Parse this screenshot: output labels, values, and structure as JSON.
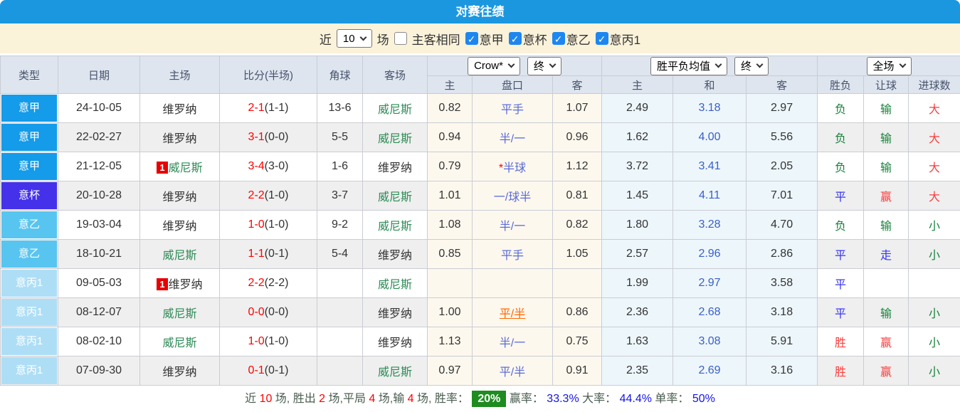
{
  "title": "对赛往绩",
  "filter": {
    "near_label": "近",
    "count_value": "10",
    "games_label": "场",
    "same_venue_label": "主客相同",
    "leagues": [
      {
        "label": "意甲",
        "checked": true
      },
      {
        "label": "意杯",
        "checked": true
      },
      {
        "label": "意乙",
        "checked": true
      },
      {
        "label": "意丙1",
        "checked": true
      }
    ]
  },
  "header": {
    "type": "类型",
    "date": "日期",
    "home": "主场",
    "score": "比分(半场)",
    "corner": "角球",
    "away": "客场",
    "odds_source": "Crow*",
    "odds_time": "终",
    "avg_source": "胜平负均值",
    "avg_time": "终",
    "scope": "全场",
    "sub": {
      "home": "主",
      "handicap": "盘口",
      "away": "客",
      "avg_home": "主",
      "avg_draw": "和",
      "avg_away": "客",
      "result": "胜负",
      "give": "让球",
      "goals": "进球数"
    }
  },
  "colors": {
    "accent_blue": "#1B97E0",
    "lega": "#149BE9",
    "coppa": "#4431E9",
    "serieb": "#58C5F1",
    "seriec": "#AEDEF6",
    "win_red": "#FA3E3E",
    "lose_green": "#17823B",
    "draw_blue": "#3535F3",
    "rate_badge_green": "#1E8C1E"
  },
  "rows": [
    {
      "league": "意甲",
      "league_class": "lega",
      "date": "24-10-05",
      "home_badge": "",
      "home": "维罗纳",
      "home_class": "",
      "score": "2-1",
      "half": "(1-1)",
      "corner": "13-6",
      "away_badge": "",
      "away": "威尼斯",
      "away_class": "tg",
      "odds_home": "0.82",
      "star": "",
      "handicap": "平手",
      "handicap_class": "",
      "odds_away": "1.07",
      "avg_home": "2.49",
      "avg_draw": "3.18",
      "avg_away": "2.97",
      "result": "负",
      "result_class": "g",
      "give": "输",
      "give_class": "g",
      "goals": "大",
      "goals_class": "r"
    },
    {
      "league": "意甲",
      "league_class": "lega",
      "date": "22-02-27",
      "home_badge": "",
      "home": "维罗纳",
      "home_class": "",
      "score": "3-1",
      "half": "(0-0)",
      "corner": "5-5",
      "away_badge": "",
      "away": "威尼斯",
      "away_class": "tg",
      "odds_home": "0.94",
      "star": "",
      "handicap": "半/一",
      "handicap_class": "",
      "odds_away": "0.96",
      "avg_home": "1.62",
      "avg_draw": "4.00",
      "avg_away": "5.56",
      "result": "负",
      "result_class": "g",
      "give": "输",
      "give_class": "g",
      "goals": "大",
      "goals_class": "r"
    },
    {
      "league": "意甲",
      "league_class": "lega",
      "date": "21-12-05",
      "home_badge": "1",
      "home": "威尼斯",
      "home_class": "tg",
      "score": "3-4",
      "half": "(3-0)",
      "corner": "1-6",
      "away_badge": "",
      "away": "维罗纳",
      "away_class": "",
      "odds_home": "0.79",
      "star": "*",
      "handicap": "半球",
      "handicap_class": "",
      "odds_away": "1.12",
      "avg_home": "3.72",
      "avg_draw": "3.41",
      "avg_away": "2.05",
      "result": "负",
      "result_class": "g",
      "give": "输",
      "give_class": "g",
      "goals": "大",
      "goals_class": "r"
    },
    {
      "league": "意杯",
      "league_class": "coppa",
      "date": "20-10-28",
      "home_badge": "",
      "home": "维罗纳",
      "home_class": "",
      "score": "2-2",
      "half": "(1-0)",
      "corner": "3-7",
      "away_badge": "",
      "away": "威尼斯",
      "away_class": "tg",
      "odds_home": "1.01",
      "star": "",
      "handicap": "一/球半",
      "handicap_class": "",
      "odds_away": "0.81",
      "avg_home": "1.45",
      "avg_draw": "4.11",
      "avg_away": "7.01",
      "result": "平",
      "result_class": "b",
      "give": "赢",
      "give_class": "r",
      "goals": "大",
      "goals_class": "r"
    },
    {
      "league": "意乙",
      "league_class": "serieb",
      "date": "19-03-04",
      "home_badge": "",
      "home": "维罗纳",
      "home_class": "",
      "score": "1-0",
      "half": "(1-0)",
      "corner": "9-2",
      "away_badge": "",
      "away": "威尼斯",
      "away_class": "tg",
      "odds_home": "1.08",
      "star": "",
      "handicap": "半/一",
      "handicap_class": "",
      "odds_away": "0.82",
      "avg_home": "1.80",
      "avg_draw": "3.28",
      "avg_away": "4.70",
      "result": "负",
      "result_class": "g",
      "give": "输",
      "give_class": "g",
      "goals": "小",
      "goals_class": "g"
    },
    {
      "league": "意乙",
      "league_class": "serieb",
      "date": "18-10-21",
      "home_badge": "",
      "home": "威尼斯",
      "home_class": "tg",
      "score": "1-1",
      "half": "(0-1)",
      "corner": "5-4",
      "away_badge": "",
      "away": "维罗纳",
      "away_class": "",
      "odds_home": "0.85",
      "star": "",
      "handicap": "平手",
      "handicap_class": "",
      "odds_away": "1.05",
      "avg_home": "2.57",
      "avg_draw": "2.96",
      "avg_away": "2.86",
      "result": "平",
      "result_class": "b",
      "give": "走",
      "give_class": "b",
      "goals": "小",
      "goals_class": "g"
    },
    {
      "league": "意丙1",
      "league_class": "seriec",
      "date": "09-05-03",
      "home_badge": "1",
      "home": "维罗纳",
      "home_class": "",
      "score": "2-2",
      "half": "(2-2)",
      "corner": "",
      "away_badge": "",
      "away": "威尼斯",
      "away_class": "tg",
      "odds_home": "",
      "star": "",
      "handicap": "",
      "handicap_class": "",
      "odds_away": "",
      "avg_home": "1.99",
      "avg_draw": "2.97",
      "avg_away": "3.58",
      "result": "平",
      "result_class": "b",
      "give": "",
      "give_class": "",
      "goals": "",
      "goals_class": ""
    },
    {
      "league": "意丙1",
      "league_class": "seriec",
      "date": "08-12-07",
      "home_badge": "",
      "home": "威尼斯",
      "home_class": "tg",
      "score": "0-0",
      "half": "(0-0)",
      "corner": "",
      "away_badge": "",
      "away": "维罗纳",
      "away_class": "",
      "odds_home": "1.00",
      "star": "",
      "handicap": "平/半",
      "handicap_class": "o",
      "odds_away": "0.86",
      "avg_home": "2.36",
      "avg_draw": "2.68",
      "avg_away": "3.18",
      "result": "平",
      "result_class": "b",
      "give": "输",
      "give_class": "g",
      "goals": "小",
      "goals_class": "g"
    },
    {
      "league": "意丙1",
      "league_class": "seriec",
      "date": "08-02-10",
      "home_badge": "",
      "home": "威尼斯",
      "home_class": "tg",
      "score": "1-0",
      "half": "(1-0)",
      "corner": "",
      "away_badge": "",
      "away": "维罗纳",
      "away_class": "",
      "odds_home": "1.13",
      "star": "",
      "handicap": "半/一",
      "handicap_class": "",
      "odds_away": "0.75",
      "avg_home": "1.63",
      "avg_draw": "3.08",
      "avg_away": "5.91",
      "result": "胜",
      "result_class": "r",
      "give": "赢",
      "give_class": "r",
      "goals": "小",
      "goals_class": "g"
    },
    {
      "league": "意丙1",
      "league_class": "seriec",
      "date": "07-09-30",
      "home_badge": "",
      "home": "维罗纳",
      "home_class": "",
      "score": "0-1",
      "half": "(0-1)",
      "corner": "",
      "away_badge": "",
      "away": "威尼斯",
      "away_class": "tg",
      "odds_home": "0.97",
      "star": "",
      "handicap": "平/半",
      "handicap_class": "",
      "odds_away": "0.91",
      "avg_home": "2.35",
      "avg_draw": "2.69",
      "avg_away": "3.16",
      "result": "胜",
      "result_class": "r",
      "give": "赢",
      "give_class": "r",
      "goals": "小",
      "goals_class": "g"
    }
  ],
  "footer": {
    "parts": [
      {
        "t": "近 ",
        "c": "f-lbl"
      },
      {
        "t": "10",
        "c": "f-red"
      },
      {
        "t": " 场, 胜出 ",
        "c": "f-lbl"
      },
      {
        "t": "2",
        "c": "f-red"
      },
      {
        "t": " 场,平局 ",
        "c": "f-lbl"
      },
      {
        "t": "4",
        "c": "f-red"
      },
      {
        "t": " 场,输 ",
        "c": "f-lbl"
      },
      {
        "t": "4",
        "c": "f-red"
      },
      {
        "t": " 场, 胜率： ",
        "c": "f-lbl"
      },
      {
        "t": "20%",
        "c": "f-badge"
      },
      {
        "t": " 赢率： ",
        "c": "f-lbl"
      },
      {
        "t": "33.3%",
        "c": "f-blue"
      },
      {
        "t": " 大率： ",
        "c": "f-lbl"
      },
      {
        "t": "44.4%",
        "c": "f-blue"
      },
      {
        "t": " 单率： ",
        "c": "f-lbl"
      },
      {
        "t": "50%",
        "c": "f-blue"
      }
    ]
  }
}
